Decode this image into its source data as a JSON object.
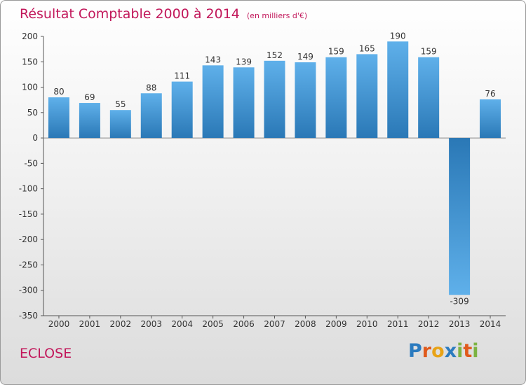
{
  "title": {
    "main": "Résultat Comptable 2000 à 2014",
    "sub": "(en milliers d'€)"
  },
  "commune": "ECLOSE",
  "logo": {
    "text": "Proxiti",
    "letters": [
      "P",
      "r",
      "o",
      "x",
      "i",
      "t",
      "i"
    ],
    "colors": [
      "#2b7bbf",
      "#e05a1c",
      "#e8a317",
      "#2b7bbf",
      "#7cb342",
      "#e05a1c",
      "#7cb342"
    ]
  },
  "colors": {
    "bar_light": "#5fb0ea",
    "bar_dark": "#2a78b6",
    "title": "#c2185b"
  },
  "chart_data": {
    "type": "bar",
    "categories": [
      "2000",
      "2001",
      "2002",
      "2003",
      "2004",
      "2005",
      "2006",
      "2007",
      "2008",
      "2009",
      "2010",
      "2011",
      "2012",
      "2013",
      "2014"
    ],
    "values": [
      80,
      69,
      55,
      88,
      111,
      143,
      139,
      152,
      149,
      159,
      165,
      190,
      159,
      -309,
      76
    ],
    "title": "Résultat Comptable 2000 à 2014",
    "subtitle": "(en milliers d'€)",
    "ylim": [
      -350,
      200
    ],
    "yticks": [
      200,
      150,
      100,
      50,
      0,
      -50,
      -100,
      -150,
      -200,
      -250,
      -300,
      -350
    ],
    "grid": false,
    "legend": "none"
  }
}
